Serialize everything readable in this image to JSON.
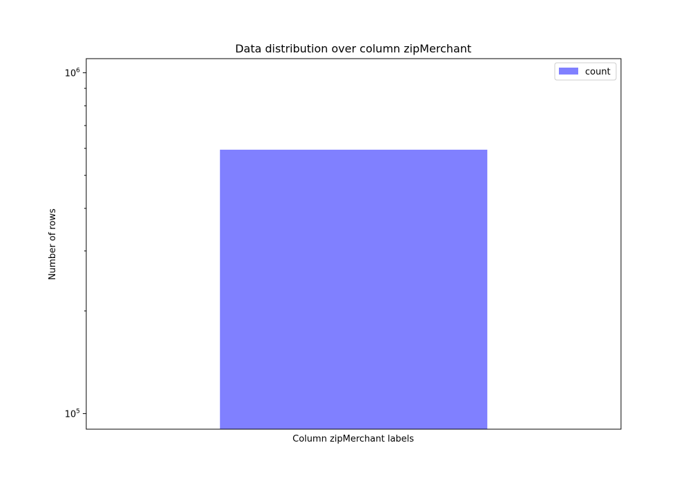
{
  "chart_data": {
    "type": "bar",
    "title": "Data distribution over column zipMerchant",
    "xlabel": "Column zipMerchant labels",
    "ylabel": "Number of rows",
    "yscale": "log",
    "ylim": [
      90000,
      1100000
    ],
    "categories": [
      ""
    ],
    "series": [
      {
        "name": "count",
        "values": [
          594643
        ]
      }
    ],
    "bar_color": "#8080ff",
    "legend": "top-right",
    "grid": false,
    "yticks": [
      {
        "value": 100000,
        "base": "10",
        "exp": "5"
      },
      {
        "value": 1000000,
        "base": "10",
        "exp": "6"
      }
    ]
  }
}
